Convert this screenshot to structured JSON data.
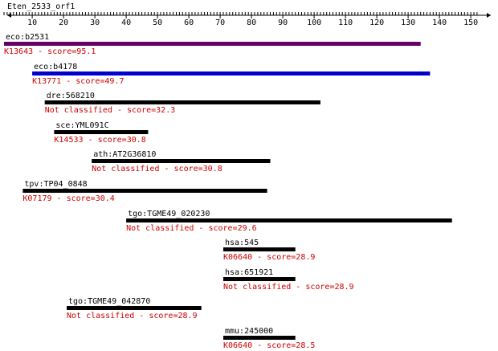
{
  "query": {
    "name": "Eten_2533_orf1",
    "length": 152
  },
  "ruler": {
    "ticks": [
      "10",
      "20",
      "30",
      "40",
      "50",
      "60",
      "70",
      "80",
      "90",
      "100",
      "110",
      "120",
      "130",
      "140",
      "150"
    ]
  },
  "colors": {
    "text": "#000000",
    "classification": "#cc0000",
    "bar_default": "#000000",
    "bar_hit1": "#660066",
    "bar_hit2": "#0000cc"
  },
  "hits": [
    {
      "id": "eco:b2531",
      "ko": "K13643 - score=95.1",
      "start": 1,
      "end": 134,
      "color": "#660066"
    },
    {
      "id": "eco:b4178",
      "ko": "K13771 - score=49.7",
      "start": 10,
      "end": 137,
      "color": "#0000cc"
    },
    {
      "id": "dre:568210",
      "ko": "Not classified - score=32.3",
      "start": 14,
      "end": 102,
      "color": "#000000"
    },
    {
      "id": "sce:YML091C",
      "ko": "K14533 - score=30.8",
      "start": 17,
      "end": 47,
      "color": "#000000"
    },
    {
      "id": "ath:AT2G36810",
      "ko": "Not classified - score=30.8",
      "start": 29,
      "end": 86,
      "color": "#000000"
    },
    {
      "id": "tpv:TP04_0848",
      "ko": "K07179 - score=30.4",
      "start": 7,
      "end": 85,
      "color": "#000000"
    },
    {
      "id": "tgo:TGME49_020230",
      "ko": "Not classified - score=29.6",
      "start": 40,
      "end": 144,
      "color": "#000000"
    },
    {
      "id": "hsa:545",
      "ko": "K06640 - score=28.9",
      "start": 71,
      "end": 94,
      "color": "#000000"
    },
    {
      "id": "hsa:651921",
      "ko": "Not classified - score=28.9",
      "start": 71,
      "end": 94,
      "color": "#000000"
    },
    {
      "id": "tgo:TGME49_042870",
      "ko": "Not classified - score=28.9",
      "start": 21,
      "end": 64,
      "color": "#000000"
    },
    {
      "id": "mmu:245000",
      "ko": "K06640 - score=28.5",
      "start": 71,
      "end": 94,
      "color": "#000000"
    }
  ]
}
